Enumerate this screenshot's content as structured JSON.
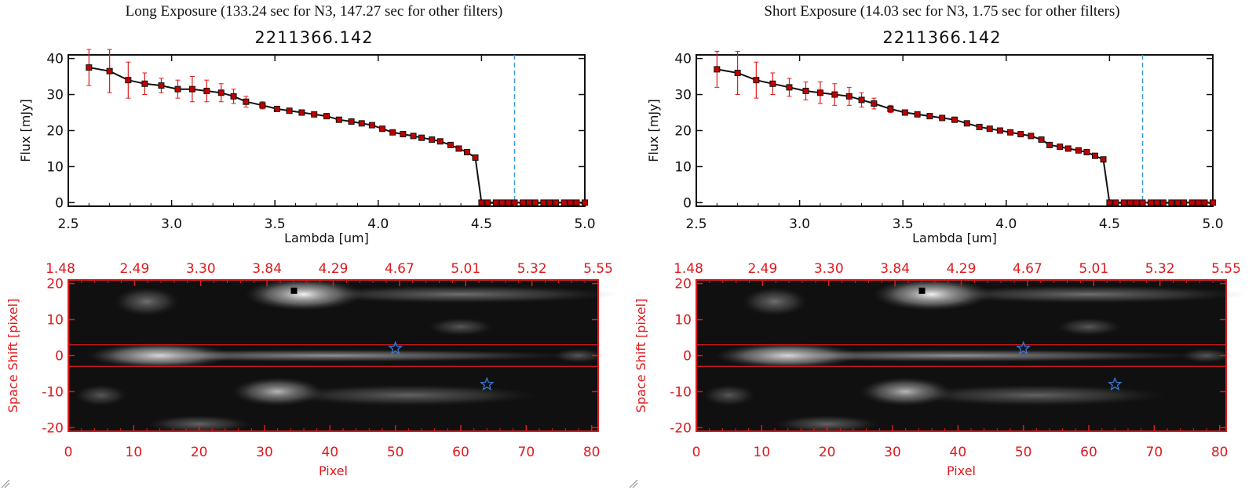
{
  "panels": [
    {
      "exposure_title": "Long Exposure (133.24 sec for N3, 147.27 sec for other filters)",
      "object_title": "2211366.142"
    },
    {
      "exposure_title": "Short Exposure (14.03 sec for N3, 1.75 sec for other filters)",
      "object_title": "2211366.142"
    }
  ],
  "colors": {
    "line": "#111111",
    "marker": "#c00000",
    "error_bar": "#e0191d",
    "threshold": "#3a9ad9",
    "image_axes": "#e0191d",
    "star_marker": "#3a78d9"
  },
  "chart_data": [
    {
      "type": "line",
      "title": "2211366.142",
      "xlabel": "Lambda [um]",
      "ylabel": "Flux [mJy]",
      "xlim": [
        2.5,
        5.0
      ],
      "ylim": [
        -1,
        41
      ],
      "xticks": [
        "2.5",
        "3.0",
        "3.5",
        "4.0",
        "4.5",
        "5.0"
      ],
      "yticks": [
        "0",
        "10",
        "20",
        "30",
        "40"
      ],
      "vertical_line_x": 4.66,
      "series": [
        {
          "x": [
            2.6,
            2.7,
            2.79,
            2.87,
            2.95,
            3.03,
            3.1,
            3.17,
            3.24,
            3.3,
            3.36,
            3.44,
            3.51,
            3.57,
            3.63,
            3.69,
            3.75,
            3.81,
            3.87,
            3.92,
            3.97,
            4.02,
            4.07,
            4.12,
            4.17,
            4.21,
            4.26,
            4.3,
            4.35,
            4.39,
            4.43,
            4.47,
            4.5,
            4.53,
            4.57,
            4.6,
            4.63,
            4.66,
            4.7,
            4.73,
            4.76,
            4.8,
            4.83,
            4.86,
            4.9,
            4.93,
            4.96,
            5.0
          ],
          "y": [
            37.5,
            36.5,
            34.0,
            33.0,
            32.5,
            31.5,
            31.5,
            31.0,
            30.5,
            29.5,
            28.0,
            27.0,
            26.0,
            25.5,
            25.0,
            24.5,
            24.0,
            23.0,
            22.5,
            22.0,
            21.5,
            20.5,
            19.5,
            19.0,
            18.5,
            18.0,
            17.5,
            17.0,
            16.0,
            15.0,
            14.0,
            12.5,
            0,
            0,
            0,
            0,
            0,
            0,
            0,
            0,
            0,
            0,
            0,
            0,
            0,
            0,
            0,
            0
          ],
          "err": [
            5.0,
            6.0,
            5.0,
            3.0,
            2.0,
            2.5,
            3.5,
            3.0,
            2.5,
            2.0,
            1.5,
            1.0,
            0.5,
            0.5,
            0.5,
            0.5,
            0.5,
            0.5,
            0.5,
            0.5,
            0.5,
            0.5,
            0.5,
            0.5,
            0.5,
            0.5,
            0.5,
            0.5,
            0.5,
            0.5,
            0.5,
            0.5,
            0,
            0,
            0,
            0,
            0,
            0,
            0,
            0,
            0,
            0,
            0,
            0,
            0,
            0,
            0,
            0
          ]
        }
      ]
    },
    {
      "type": "heatmap",
      "xlabel": "Pixel",
      "ylabel": "Space Shift [pixel]",
      "xlim": [
        0,
        81
      ],
      "ylim": [
        -21,
        21
      ],
      "xticks": [
        "0",
        "10",
        "20",
        "30",
        "40",
        "50",
        "60",
        "70",
        "80"
      ],
      "yticks": [
        "-20",
        "-10",
        "0",
        "10",
        "20"
      ],
      "top_axis_ticks": [
        "1.48",
        "2.49",
        "3.30",
        "3.84",
        "4.29",
        "4.67",
        "5.01",
        "5.32",
        "5.55"
      ],
      "horizontal_lines_y": [
        3,
        -3
      ],
      "star_markers": [
        {
          "x": 50,
          "y": 2
        },
        {
          "x": 64,
          "y": -8
        }
      ],
      "black_marker": {
        "x": 34.5,
        "y": 18
      }
    },
    {
      "type": "line",
      "title": "2211366.142",
      "xlabel": "Lambda [um]",
      "ylabel": "Flux [mJy]",
      "xlim": [
        2.5,
        5.0
      ],
      "ylim": [
        -1,
        41
      ],
      "xticks": [
        "2.5",
        "3.0",
        "3.5",
        "4.0",
        "4.5",
        "5.0"
      ],
      "yticks": [
        "0",
        "10",
        "20",
        "30",
        "40"
      ],
      "vertical_line_x": 4.66,
      "series": [
        {
          "x": [
            2.6,
            2.7,
            2.79,
            2.87,
            2.95,
            3.03,
            3.1,
            3.17,
            3.24,
            3.3,
            3.36,
            3.44,
            3.51,
            3.57,
            3.63,
            3.69,
            3.75,
            3.81,
            3.87,
            3.92,
            3.97,
            4.02,
            4.07,
            4.12,
            4.17,
            4.21,
            4.26,
            4.3,
            4.35,
            4.39,
            4.43,
            4.47,
            4.5,
            4.53,
            4.57,
            4.6,
            4.63,
            4.66,
            4.7,
            4.73,
            4.76,
            4.8,
            4.83,
            4.86,
            4.9,
            4.93,
            4.96,
            5.0
          ],
          "y": [
            37.0,
            36.0,
            34.0,
            33.0,
            32.0,
            31.0,
            30.5,
            30.0,
            29.5,
            28.5,
            27.5,
            26.0,
            25.0,
            24.5,
            24.0,
            23.5,
            23.0,
            22.0,
            21.0,
            20.5,
            20.0,
            19.5,
            19.0,
            18.5,
            17.5,
            16.0,
            15.5,
            15.0,
            14.5,
            14.0,
            13.0,
            12.0,
            0,
            0,
            0,
            0,
            0,
            0,
            0,
            0,
            0,
            0,
            0,
            0,
            0,
            0,
            0,
            0
          ],
          "err": [
            5.0,
            6.0,
            5.0,
            3.0,
            2.5,
            2.5,
            3.0,
            3.0,
            2.5,
            2.0,
            1.5,
            1.0,
            0.5,
            0.5,
            0.5,
            0.5,
            0.5,
            0.5,
            0.5,
            0.5,
            0.5,
            0.5,
            0.5,
            0.5,
            0.5,
            0.5,
            0.5,
            0.5,
            0.5,
            0.5,
            0.5,
            0.5,
            0,
            0,
            0,
            0,
            0,
            0,
            0,
            0,
            0,
            0,
            0,
            0,
            0,
            0,
            0,
            0
          ]
        }
      ]
    },
    {
      "type": "heatmap",
      "xlabel": "Pixel",
      "ylabel": "Space Shift [pixel]",
      "xlim": [
        0,
        81
      ],
      "ylim": [
        -21,
        21
      ],
      "xticks": [
        "0",
        "10",
        "20",
        "30",
        "40",
        "50",
        "60",
        "70",
        "80"
      ],
      "yticks": [
        "-20",
        "-10",
        "0",
        "10",
        "20"
      ],
      "top_axis_ticks": [
        "1.48",
        "2.49",
        "3.30",
        "3.84",
        "4.29",
        "4.67",
        "5.01",
        "5.32",
        "5.55"
      ],
      "horizontal_lines_y": [
        3,
        -3
      ],
      "star_markers": [
        {
          "x": 50,
          "y": 2
        },
        {
          "x": 64,
          "y": -8
        }
      ],
      "black_marker": {
        "x": 34.5,
        "y": 18
      }
    }
  ]
}
